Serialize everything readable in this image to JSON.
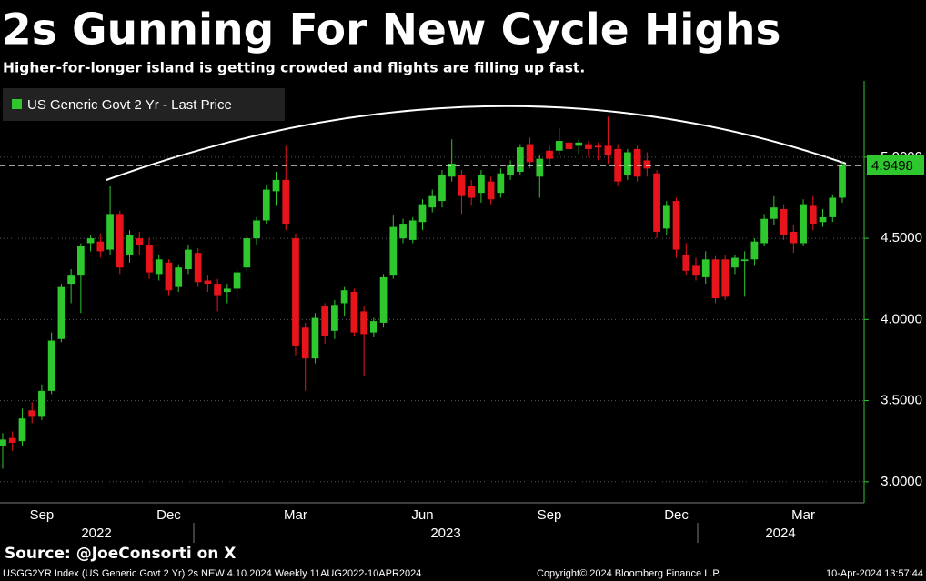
{
  "chart_data": {
    "type": "candlestick",
    "title": "2s Gunning For New Cycle Highs",
    "subtitle": "Higher-for-longer island is getting crowded and flights are filling up fast.",
    "source": "Source: @JoeConsorti on X",
    "footer": {
      "left": "USGG2YR Index (US Generic Govt 2 Yr) 2s NEW 4.10.2024  Weekly 11AUG2022-10APR2024",
      "center": "Copyright© 2024 Bloomberg Finance L.P.",
      "right": "10-Apr-2024 13:57:44"
    },
    "series_name": "US Generic Govt 2 Yr - Last Price",
    "up_color": "#2ec82e",
    "down_color": "#e8141b",
    "grid": true,
    "categories": [
      null,
      null,
      null,
      null,
      "Sep",
      null,
      null,
      null,
      null,
      null,
      null,
      null,
      null,
      null,
      null,
      null,
      null,
      "Dec",
      null,
      null,
      null,
      null,
      null,
      null,
      null,
      null,
      null,
      null,
      null,
      null,
      "Mar",
      null,
      null,
      null,
      null,
      null,
      null,
      null,
      null,
      null,
      null,
      null,
      null,
      "Jun",
      null,
      null,
      null,
      null,
      null,
      null,
      null,
      null,
      null,
      null,
      null,
      null,
      "Sep",
      null,
      null,
      null,
      null,
      null,
      null,
      null,
      null,
      null,
      null,
      null,
      null,
      "Dec",
      null,
      null,
      null,
      null,
      null,
      null,
      null,
      null,
      null,
      null,
      null,
      null,
      "Mar",
      null,
      null,
      null,
      null
    ],
    "years": [
      "2022",
      "2023",
      "2024"
    ],
    "open": [
      3.22,
      3.27,
      3.25,
      3.44,
      3.4,
      3.56,
      3.88,
      4.22,
      4.27,
      4.47,
      4.48,
      4.43,
      4.65,
      4.4,
      4.5,
      4.46,
      4.28,
      4.35,
      4.2,
      4.31,
      4.41,
      4.24,
      4.22,
      4.17,
      4.19,
      4.32,
      4.5,
      4.61,
      4.79,
      4.86,
      4.5,
      3.95,
      3.76,
      4.08,
      3.93,
      4.1,
      4.17,
      4.05,
      3.92,
      3.98,
      4.27,
      4.5,
      4.49,
      4.6,
      4.69,
      4.73,
      4.88,
      4.89,
      4.82,
      4.78,
      4.85,
      4.78,
      4.89,
      4.91,
      5.08,
      4.88,
      5.04,
      5.04,
      5.09,
      5.07,
      5.08,
      5.07,
      5.07,
      5.05,
      4.89,
      5.05,
      4.98,
      4.9,
      4.56,
      4.73,
      4.4,
      4.33,
      4.26,
      4.37,
      4.37,
      4.32,
      4.36,
      4.37,
      4.47,
      4.62,
      4.68,
      4.54,
      4.47,
      4.7,
      4.6,
      4.63,
      4.75
    ],
    "high": [
      3.3,
      3.31,
      3.45,
      3.49,
      3.6,
      3.92,
      4.22,
      4.31,
      4.47,
      4.52,
      4.53,
      4.82,
      4.67,
      4.55,
      4.54,
      4.5,
      4.4,
      4.37,
      4.34,
      4.46,
      4.44,
      4.27,
      4.25,
      4.22,
      4.32,
      4.52,
      4.63,
      4.83,
      4.91,
      5.07,
      4.53,
      3.98,
      4.04,
      4.1,
      4.12,
      4.2,
      4.19,
      4.08,
      4.01,
      4.28,
      4.64,
      4.62,
      4.63,
      4.74,
      4.8,
      4.92,
      5.11,
      4.92,
      4.86,
      4.92,
      4.88,
      4.93,
      4.98,
      5.08,
      5.12,
      5.01,
      5.07,
      5.18,
      5.12,
      5.11,
      5.1,
      5.09,
      5.25,
      5.08,
      5.05,
      5.07,
      5.03,
      4.92,
      4.73,
      4.75,
      4.47,
      4.38,
      4.42,
      4.39,
      4.4,
      4.4,
      4.42,
      4.5,
      4.65,
      4.76,
      4.71,
      4.58,
      4.74,
      4.76,
      4.68,
      4.77,
      4.97
    ],
    "low": [
      3.08,
      3.19,
      3.22,
      3.36,
      3.38,
      3.54,
      3.86,
      4.1,
      4.04,
      4.42,
      4.38,
      4.4,
      4.28,
      4.35,
      4.4,
      4.25,
      4.24,
      4.15,
      4.17,
      4.28,
      4.2,
      4.17,
      4.05,
      4.1,
      4.12,
      4.3,
      4.46,
      4.59,
      4.7,
      4.55,
      3.78,
      3.56,
      3.73,
      3.85,
      3.88,
      4.02,
      3.9,
      3.65,
      3.89,
      3.95,
      4.25,
      4.47,
      4.47,
      4.55,
      4.66,
      4.69,
      4.85,
      4.65,
      4.7,
      4.72,
      4.71,
      4.75,
      4.86,
      4.89,
      4.93,
      4.75,
      4.95,
      5.01,
      4.99,
      5.02,
      5.0,
      4.98,
      4.96,
      4.82,
      4.86,
      4.85,
      4.88,
      4.5,
      4.52,
      4.38,
      4.27,
      4.24,
      4.22,
      4.1,
      4.12,
      4.28,
      4.14,
      4.33,
      4.45,
      4.58,
      4.49,
      4.41,
      4.45,
      4.55,
      4.57,
      4.6,
      4.72
    ],
    "close": [
      3.26,
      3.24,
      3.39,
      3.4,
      3.56,
      3.87,
      4.2,
      4.27,
      4.45,
      4.5,
      4.42,
      4.65,
      4.32,
      4.52,
      4.46,
      4.29,
      4.37,
      4.18,
      4.32,
      4.43,
      4.23,
      4.22,
      4.15,
      4.19,
      4.29,
      4.5,
      4.61,
      4.8,
      4.86,
      4.59,
      3.84,
      3.76,
      4.01,
      3.9,
      4.09,
      4.18,
      3.92,
      3.91,
      3.99,
      4.26,
      4.57,
      4.59,
      4.61,
      4.71,
      4.76,
      4.89,
      4.96,
      4.76,
      4.75,
      4.89,
      4.74,
      4.9,
      4.95,
      5.06,
      4.97,
      4.99,
      4.99,
      5.1,
      5.05,
      5.09,
      5.05,
      5.06,
      5.01,
      4.85,
      5.03,
      4.88,
      4.93,
      4.54,
      4.7,
      4.43,
      4.3,
      4.27,
      4.37,
      4.13,
      4.14,
      4.38,
      4.37,
      4.48,
      4.62,
      4.69,
      4.52,
      4.47,
      4.71,
      4.59,
      4.63,
      4.75,
      4.9498
    ],
    "last_price": 4.9498,
    "ylim": [
      2.87,
      5.47
    ],
    "yticks": [
      {
        "value": 3,
        "label": "3.0000"
      },
      {
        "value": 3.5,
        "label": "3.5000"
      },
      {
        "value": 4,
        "label": "4.0000"
      },
      {
        "value": 4.5,
        "label": "4.5000"
      },
      {
        "value": 5,
        "label": "5.0000"
      }
    ]
  }
}
